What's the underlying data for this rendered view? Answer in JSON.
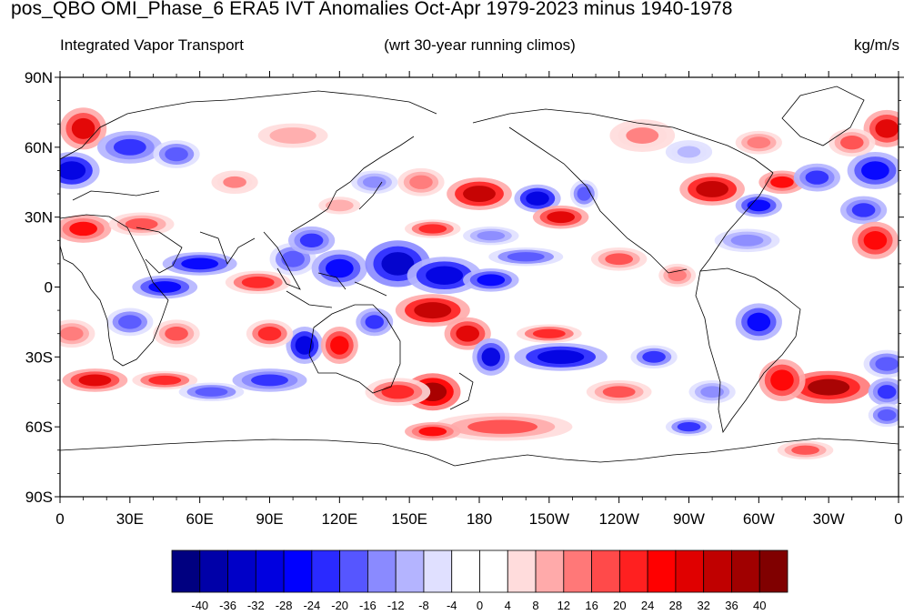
{
  "title": "pos_QBO OMI_Phase_6 ERA5 IVT Anomalies Oct-Apr 1979-2023 minus 1940-1978",
  "subtitle_left": "Integrated Vapor Transport",
  "subtitle_center": "(wrt 30-year running climos)",
  "subtitle_right": "kg/m/s",
  "axes": {
    "lat_ticks": [
      {
        "value": 90,
        "label": "90N"
      },
      {
        "value": 60,
        "label": "60N"
      },
      {
        "value": 30,
        "label": "30N"
      },
      {
        "value": 0,
        "label": "0"
      },
      {
        "value": -30,
        "label": "30S"
      },
      {
        "value": -60,
        "label": "60S"
      },
      {
        "value": -90,
        "label": "90S"
      }
    ],
    "lon_ticks": [
      {
        "value": 0,
        "label": "0"
      },
      {
        "value": 30,
        "label": "30E"
      },
      {
        "value": 60,
        "label": "60E"
      },
      {
        "value": 90,
        "label": "90E"
      },
      {
        "value": 120,
        "label": "120E"
      },
      {
        "value": 150,
        "label": "150E"
      },
      {
        "value": 180,
        "label": "180"
      },
      {
        "value": 210,
        "label": "150W"
      },
      {
        "value": 240,
        "label": "120W"
      },
      {
        "value": 270,
        "label": "90W"
      },
      {
        "value": 300,
        "label": "60W"
      },
      {
        "value": 330,
        "label": "30W"
      },
      {
        "value": 360,
        "label": "0"
      }
    ],
    "lon_range": [
      0,
      360
    ],
    "lat_range": [
      -90,
      90
    ]
  },
  "colorbar": {
    "levels": [
      "-40",
      "-36",
      "-32",
      "-28",
      "-24",
      "-20",
      "-16",
      "-12",
      "-8",
      "-4",
      "0",
      "4",
      "8",
      "12",
      "16",
      "20",
      "24",
      "28",
      "32",
      "36",
      "40"
    ],
    "colors": [
      "#000080",
      "#0000a8",
      "#0000c8",
      "#0000e0",
      "#0000ff",
      "#2a2aff",
      "#5656ff",
      "#8a8aff",
      "#b4b4ff",
      "#e0e0ff",
      "#ffffff",
      "#ffffff",
      "#ffdcdc",
      "#ffaaaa",
      "#ff7878",
      "#ff4a4a",
      "#ff2020",
      "#ff0000",
      "#e00000",
      "#c00000",
      "#a00000",
      "#800000"
    ]
  },
  "anomalies": [
    {
      "lon": 10,
      "lat": 68,
      "rx": 10,
      "ry": 9,
      "v": 30
    },
    {
      "lon": 355,
      "lat": 68,
      "rx": 10,
      "ry": 8,
      "v": 30
    },
    {
      "lon": 5,
      "lat": 50,
      "rx": 12,
      "ry": 8,
      "v": -32
    },
    {
      "lon": 350,
      "lat": 50,
      "rx": 12,
      "ry": 8,
      "v": -28
    },
    {
      "lon": 30,
      "lat": 60,
      "rx": 14,
      "ry": 7,
      "v": -24
    },
    {
      "lon": 50,
      "lat": 57,
      "rx": 10,
      "ry": 6,
      "v": -20
    },
    {
      "lon": 10,
      "lat": 25,
      "rx": 12,
      "ry": 6,
      "v": 24
    },
    {
      "lon": 35,
      "lat": 27,
      "rx": 14,
      "ry": 5,
      "v": 16
    },
    {
      "lon": 75,
      "lat": 45,
      "rx": 10,
      "ry": 5,
      "v": 12
    },
    {
      "lon": 60,
      "lat": 10,
      "rx": 16,
      "ry": 5,
      "v": -28
    },
    {
      "lon": 45,
      "lat": 0,
      "rx": 14,
      "ry": 5,
      "v": -28
    },
    {
      "lon": 85,
      "lat": 2,
      "rx": 14,
      "ry": 5,
      "v": 20
    },
    {
      "lon": 100,
      "lat": 12,
      "rx": 10,
      "ry": 7,
      "v": -20
    },
    {
      "lon": 108,
      "lat": 20,
      "rx": 10,
      "ry": 6,
      "v": -24
    },
    {
      "lon": 120,
      "lat": 8,
      "rx": 12,
      "ry": 8,
      "v": -28
    },
    {
      "lon": 145,
      "lat": 10,
      "rx": 14,
      "ry": 10,
      "v": -36
    },
    {
      "lon": 165,
      "lat": 5,
      "rx": 16,
      "ry": 8,
      "v": -32
    },
    {
      "lon": 185,
      "lat": 3,
      "rx": 12,
      "ry": 5,
      "v": -28
    },
    {
      "lon": 200,
      "lat": 13,
      "rx": 16,
      "ry": 4,
      "v": -20
    },
    {
      "lon": 180,
      "lat": 40,
      "rx": 14,
      "ry": 7,
      "v": 34
    },
    {
      "lon": 205,
      "lat": 38,
      "rx": 10,
      "ry": 6,
      "v": -32
    },
    {
      "lon": 215,
      "lat": 30,
      "rx": 12,
      "ry": 5,
      "v": 30
    },
    {
      "lon": 160,
      "lat": 25,
      "rx": 12,
      "ry": 4,
      "v": 22
    },
    {
      "lon": 185,
      "lat": 22,
      "rx": 12,
      "ry": 4,
      "v": -16
    },
    {
      "lon": 225,
      "lat": 40,
      "rx": 6,
      "ry": 6,
      "v": -20
    },
    {
      "lon": 280,
      "lat": 42,
      "rx": 14,
      "ry": 7,
      "v": 34
    },
    {
      "lon": 300,
      "lat": 35,
      "rx": 10,
      "ry": 5,
      "v": -28
    },
    {
      "lon": 310,
      "lat": 45,
      "rx": 10,
      "ry": 5,
      "v": 24
    },
    {
      "lon": 325,
      "lat": 47,
      "rx": 10,
      "ry": 6,
      "v": -24
    },
    {
      "lon": 345,
      "lat": 33,
      "rx": 10,
      "ry": 6,
      "v": -24
    },
    {
      "lon": 295,
      "lat": 20,
      "rx": 14,
      "ry": 5,
      "v": -16
    },
    {
      "lon": 350,
      "lat": 20,
      "rx": 10,
      "ry": 8,
      "v": 26
    },
    {
      "lon": 160,
      "lat": -10,
      "rx": 16,
      "ry": 7,
      "v": 34
    },
    {
      "lon": 175,
      "lat": -20,
      "rx": 10,
      "ry": 7,
      "v": 30
    },
    {
      "lon": 185,
      "lat": -30,
      "rx": 8,
      "ry": 8,
      "v": -30
    },
    {
      "lon": 215,
      "lat": -30,
      "rx": 20,
      "ry": 6,
      "v": -32
    },
    {
      "lon": 210,
      "lat": -20,
      "rx": 14,
      "ry": 4,
      "v": 20
    },
    {
      "lon": 255,
      "lat": -30,
      "rx": 10,
      "ry": 5,
      "v": -22
    },
    {
      "lon": 300,
      "lat": -15,
      "rx": 10,
      "ry": 8,
      "v": -28
    },
    {
      "lon": 330,
      "lat": -43,
      "rx": 18,
      "ry": 7,
      "v": 36
    },
    {
      "lon": 310,
      "lat": -40,
      "rx": 10,
      "ry": 9,
      "v": 26
    },
    {
      "lon": 355,
      "lat": -33,
      "rx": 10,
      "ry": 6,
      "v": -20
    },
    {
      "lon": 355,
      "lat": -45,
      "rx": 8,
      "ry": 6,
      "v": -24
    },
    {
      "lon": 15,
      "lat": -40,
      "rx": 14,
      "ry": 5,
      "v": 30
    },
    {
      "lon": 45,
      "lat": -40,
      "rx": 14,
      "ry": 4,
      "v": 20
    },
    {
      "lon": 65,
      "lat": -45,
      "rx": 14,
      "ry": 4,
      "v": -20
    },
    {
      "lon": 90,
      "lat": -40,
      "rx": 16,
      "ry": 5,
      "v": -24
    },
    {
      "lon": 105,
      "lat": -25,
      "rx": 8,
      "ry": 8,
      "v": -32
    },
    {
      "lon": 120,
      "lat": -25,
      "rx": 8,
      "ry": 8,
      "v": 26
    },
    {
      "lon": 135,
      "lat": -15,
      "rx": 8,
      "ry": 6,
      "v": -24
    },
    {
      "lon": 90,
      "lat": -20,
      "rx": 10,
      "ry": 6,
      "v": 22
    },
    {
      "lon": 160,
      "lat": -45,
      "rx": 12,
      "ry": 8,
      "v": 38
    },
    {
      "lon": 145,
      "lat": -45,
      "rx": 14,
      "ry": 6,
      "v": 22
    },
    {
      "lon": 30,
      "lat": -15,
      "rx": 10,
      "ry": 6,
      "v": -20
    },
    {
      "lon": 50,
      "lat": -20,
      "rx": 10,
      "ry": 6,
      "v": 16
    },
    {
      "lon": 5,
      "lat": -20,
      "rx": 10,
      "ry": 6,
      "v": 14
    },
    {
      "lon": 270,
      "lat": -60,
      "rx": 10,
      "ry": 4,
      "v": -22
    },
    {
      "lon": 355,
      "lat": -55,
      "rx": 8,
      "ry": 5,
      "v": -20
    },
    {
      "lon": 190,
      "lat": -60,
      "rx": 30,
      "ry": 6,
      "v": 18
    },
    {
      "lon": 160,
      "lat": -62,
      "rx": 12,
      "ry": 4,
      "v": 24
    },
    {
      "lon": 320,
      "lat": -70,
      "rx": 12,
      "ry": 4,
      "v": 16
    },
    {
      "lon": 100,
      "lat": 65,
      "rx": 20,
      "ry": 7,
      "v": 10
    },
    {
      "lon": 250,
      "lat": 65,
      "rx": 14,
      "ry": 7,
      "v": 12
    },
    {
      "lon": 300,
      "lat": 62,
      "rx": 10,
      "ry": 5,
      "v": 14
    },
    {
      "lon": 270,
      "lat": 58,
      "rx": 10,
      "ry": 5,
      "v": -12
    },
    {
      "lon": 340,
      "lat": 62,
      "rx": 10,
      "ry": 6,
      "v": 16
    },
    {
      "lon": 135,
      "lat": 45,
      "rx": 10,
      "ry": 5,
      "v": -14
    },
    {
      "lon": 120,
      "lat": 35,
      "rx": 12,
      "ry": 5,
      "v": 10
    },
    {
      "lon": 155,
      "lat": 45,
      "rx": 10,
      "ry": 6,
      "v": 14
    },
    {
      "lon": 240,
      "lat": 12,
      "rx": 12,
      "ry": 5,
      "v": 18
    },
    {
      "lon": 265,
      "lat": 5,
      "rx": 8,
      "ry": 5,
      "v": 14
    },
    {
      "lon": 240,
      "lat": -45,
      "rx": 14,
      "ry": 5,
      "v": 16
    },
    {
      "lon": 280,
      "lat": -45,
      "rx": 10,
      "ry": 5,
      "v": -16
    }
  ]
}
